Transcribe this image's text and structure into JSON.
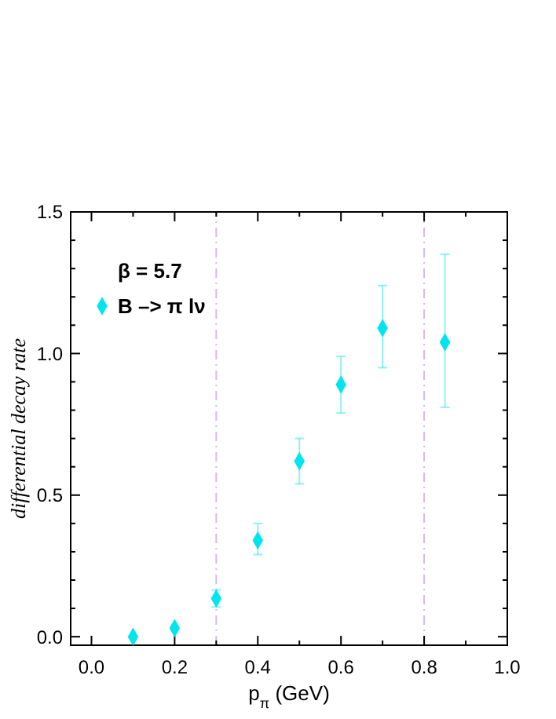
{
  "chart_data": {
    "type": "scatter",
    "xlabel": "p$_{π}$ (GeV)",
    "ylabel": "differential decay rate",
    "legend_title": "β = 5.7",
    "legend": "top left",
    "marker": "diamond",
    "x": [
      0.1,
      0.2,
      0.3,
      0.4,
      0.5,
      0.6,
      0.7,
      0.85
    ],
    "series": [
      {
        "name": "B –> π lν",
        "color": "#00e5ee",
        "values": [
          0.0,
          0.03,
          0.135,
          0.34,
          0.62,
          0.89,
          1.09,
          1.04
        ],
        "errors": [
          null,
          null,
          0.03,
          [
            0.29,
            0.4
          ],
          [
            0.54,
            0.7
          ],
          [
            0.79,
            0.99
          ],
          [
            0.95,
            1.24
          ],
          [
            0.81,
            1.35
          ]
        ]
      }
    ],
    "xlim": [
      -0.05,
      1.0
    ],
    "ylim": [
      -0.03,
      1.5
    ],
    "xticks": [
      {
        "value": 0,
        "label": "0.0"
      },
      {
        "value": 0.1,
        "label": null
      },
      {
        "value": 0.2,
        "label": "0.2"
      },
      {
        "value": 0.3,
        "label": null
      },
      {
        "value": 0.4,
        "label": "0.4"
      },
      {
        "value": 0.5,
        "label": null
      },
      {
        "value": 0.6,
        "label": "0.6"
      },
      {
        "value": 0.7,
        "label": null
      },
      {
        "value": 0.8,
        "label": "0.8"
      },
      {
        "value": 0.9,
        "label": null
      },
      {
        "value": 1.0,
        "label": "1.0"
      }
    ],
    "yticks": [
      {
        "value": 0,
        "label": "0.0"
      },
      {
        "value": 0.1,
        "label": null
      },
      {
        "value": 0.2,
        "label": null
      },
      {
        "value": 0.3,
        "label": null
      },
      {
        "value": 0.4,
        "label": null
      },
      {
        "value": 0.5,
        "label": "0.5"
      },
      {
        "value": 0.6,
        "label": null
      },
      {
        "value": 0.7,
        "label": null
      },
      {
        "value": 0.8,
        "label": null
      },
      {
        "value": 0.9,
        "label": null
      },
      {
        "value": 1.0,
        "label": "1.0"
      },
      {
        "value": 1.1,
        "label": null
      },
      {
        "value": 1.2,
        "label": null
      },
      {
        "value": 1.3,
        "label": null
      },
      {
        "value": 1.4,
        "label": null
      },
      {
        "value": 1.5,
        "label": "1.5"
      }
    ],
    "ref_lines": [
      {
        "axis": "x",
        "value": 0.3,
        "color": "#d8b8f0",
        "line_style": "dashdot"
      },
      {
        "axis": "x",
        "value": 0.8,
        "color": "#d8b8f0",
        "line_style": "dashdot"
      }
    ]
  }
}
